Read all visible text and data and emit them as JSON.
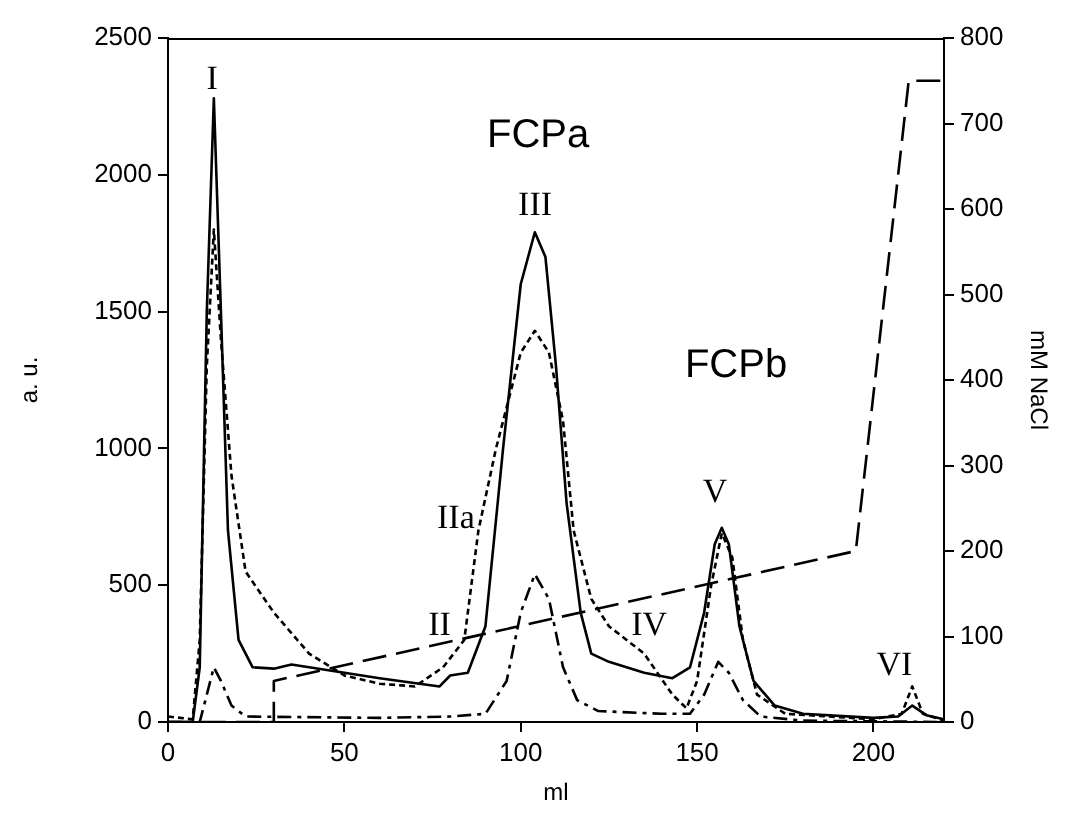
{
  "chart_data": {
    "type": "line",
    "xlabel": "ml",
    "ylabel": "a. u.",
    "y2label": "mM NaCl",
    "xlim": [
      0,
      220
    ],
    "xticks": [
      0,
      50,
      100,
      150,
      200
    ],
    "ylim": [
      0,
      2500
    ],
    "yticks": [
      0,
      500,
      1000,
      1500,
      2000,
      2500
    ],
    "y2lim": [
      0,
      800
    ],
    "y2ticks": [
      0,
      100,
      200,
      300,
      400,
      500,
      600,
      700,
      800
    ],
    "grid": false,
    "legend": false,
    "marker": "none",
    "series": [
      {
        "color": "#000000",
        "line_style": "solid",
        "x": [
          0,
          7,
          9,
          11,
          13,
          15,
          17,
          20,
          24,
          30,
          35,
          45,
          60,
          77,
          80,
          85,
          90,
          95,
          100,
          104,
          107,
          110,
          113,
          117,
          120,
          125,
          135,
          143,
          148,
          152,
          155,
          157,
          159,
          162,
          166,
          172,
          180,
          200,
          207,
          211,
          215,
          220
        ],
        "values": [
          0,
          0,
          200,
          1500,
          2280,
          1500,
          700,
          300,
          200,
          195,
          210,
          190,
          160,
          130,
          170,
          180,
          350,
          1000,
          1600,
          1790,
          1700,
          1300,
          800,
          400,
          250,
          220,
          180,
          160,
          200,
          400,
          650,
          710,
          650,
          350,
          150,
          60,
          30,
          15,
          20,
          60,
          25,
          10
        ]
      },
      {
        "color": "#000000",
        "line_style": "dotted",
        "x": [
          0,
          7,
          9,
          11,
          13,
          15,
          18,
          22,
          30,
          40,
          50,
          60,
          70,
          78,
          84,
          88,
          93,
          100,
          104,
          108,
          112,
          115,
          120,
          125,
          135,
          143,
          147,
          150,
          154,
          157,
          160,
          163,
          167,
          175,
          200,
          208,
          211,
          214,
          220
        ],
        "values": [
          20,
          10,
          300,
          1300,
          1800,
          1400,
          900,
          550,
          400,
          250,
          170,
          140,
          130,
          200,
          300,
          700,
          1000,
          1350,
          1430,
          1350,
          1100,
          700,
          450,
          350,
          250,
          100,
          50,
          150,
          500,
          690,
          600,
          300,
          100,
          30,
          10,
          30,
          130,
          30,
          5
        ]
      },
      {
        "color": "#000000",
        "line_style": "dashdot",
        "x": [
          0,
          9,
          11,
          13,
          15,
          18,
          22,
          60,
          80,
          90,
          96,
          100,
          104,
          108,
          112,
          116,
          122,
          140,
          148,
          152,
          156,
          159,
          163,
          168,
          180,
          220
        ],
        "values": [
          0,
          0,
          100,
          200,
          150,
          60,
          20,
          15,
          20,
          30,
          150,
          400,
          540,
          450,
          200,
          80,
          40,
          30,
          30,
          100,
          220,
          180,
          80,
          20,
          5,
          0
        ]
      },
      {
        "color": "#000000",
        "line_style": "dashed",
        "axis": "y2",
        "x": [
          0,
          30,
          30,
          195,
          210,
          220
        ],
        "values": [
          0,
          0,
          48,
          200,
          750,
          750
        ]
      }
    ],
    "annotations": [
      "I",
      "FCPa",
      "III",
      "IIa",
      "II",
      "IV",
      "FCPb",
      "V",
      "VI"
    ]
  }
}
